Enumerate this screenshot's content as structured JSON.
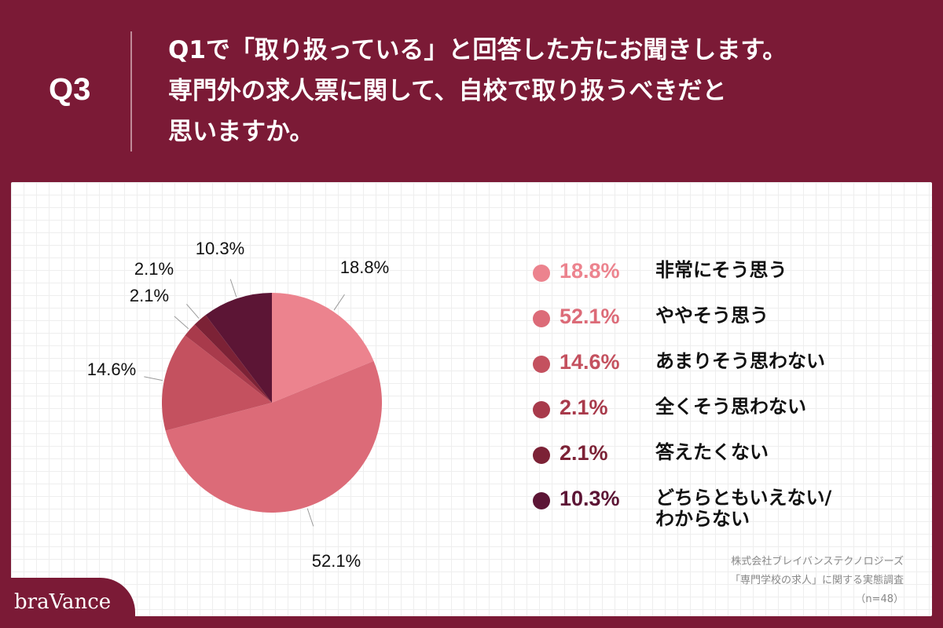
{
  "header": {
    "q_number": "Q3",
    "question_lines": [
      "Q1で「取り扱っている」と回答した方にお聞きします。",
      "専門外の求人票に関して、自校で取り扱うべきだと",
      "思いますか。"
    ]
  },
  "chart_data": {
    "type": "pie",
    "start_angle_deg": 0,
    "direction": "clockwise",
    "slices": [
      {
        "label": "非常にそう思う",
        "value": 18.8,
        "display": "18.8%",
        "color": "#ec838e"
      },
      {
        "label": "ややそう思う",
        "value": 52.1,
        "display": "52.1%",
        "color": "#dc6b78"
      },
      {
        "label": "あまりそう思わない",
        "value": 14.6,
        "display": "14.6%",
        "color": "#c4515f"
      },
      {
        "label": "全くそう思わない",
        "value": 2.1,
        "display": "2.1%",
        "color": "#a83a4b"
      },
      {
        "label": "答えたくない",
        "value": 2.1,
        "display": "2.1%",
        "color": "#7c2236"
      },
      {
        "label": "どちらともいえない/わからない",
        "value": 10.3,
        "display": "10.3%",
        "color": "#5c1535"
      }
    ],
    "legend_position": "right"
  },
  "legend": [
    {
      "pct": "18.8%",
      "line1": "非常にそう思う",
      "line2": ""
    },
    {
      "pct": "52.1%",
      "line1": "ややそう思う",
      "line2": ""
    },
    {
      "pct": "14.6%",
      "line1": "あまりそう思わない",
      "line2": ""
    },
    {
      "pct": "2.1%",
      "line1": "全くそう思わない",
      "line2": ""
    },
    {
      "pct": "2.1%",
      "line1": "答えたくない",
      "line2": ""
    },
    {
      "pct": "10.3%",
      "line1": "どちらともいえない/",
      "line2": "わからない"
    }
  ],
  "source": {
    "company": "株式会社ブレイバンステクノロジーズ",
    "survey": "「専門学校の求人」に関する実態調査",
    "sample": "（n=48）"
  },
  "brand": {
    "name": "braVance"
  },
  "colors": {
    "background": "#7b1a36",
    "card": "#ffffff"
  }
}
